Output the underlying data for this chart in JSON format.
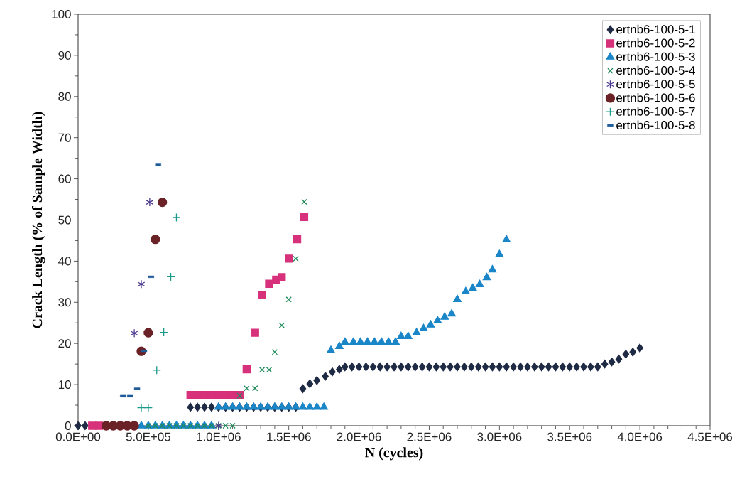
{
  "chart_data": {
    "type": "scatter",
    "xlabel": "N (cycles)",
    "ylabel": "Crack Length (% of Sample Width)",
    "xlim": [
      0,
      4500000
    ],
    "ylim": [
      0,
      100
    ],
    "xticks": [
      {
        "value": 0,
        "label": "0.0E+00"
      },
      {
        "value": 500000,
        "label": "5.0E+05"
      },
      {
        "value": 1000000,
        "label": "1.0E+06"
      },
      {
        "value": 1500000,
        "label": "1.5E+06"
      },
      {
        "value": 2000000,
        "label": "2.0E+06"
      },
      {
        "value": 2500000,
        "label": "2.5E+06"
      },
      {
        "value": 3000000,
        "label": "3.0E+06"
      },
      {
        "value": 3500000,
        "label": "3.5E+06"
      },
      {
        "value": 4000000,
        "label": "4.0E+06"
      },
      {
        "value": 4500000,
        "label": "4.5E+06"
      }
    ],
    "yticks": [
      0,
      10,
      20,
      30,
      40,
      50,
      60,
      70,
      80,
      90,
      100
    ],
    "legend": "top right",
    "series": [
      {
        "name": "ertnb6-100-5-1",
        "color": "#1f2a44",
        "marker": "diamond",
        "x": [
          0,
          50000,
          800000,
          850000,
          900000,
          950000,
          1000000,
          1050000,
          1100000,
          1150000,
          1200000,
          1250000,
          1300000,
          1350000,
          1400000,
          1450000,
          1500000,
          1550000,
          1600000,
          1650000,
          1700000,
          1760000,
          1810000,
          1860000,
          1900000,
          1950000,
          2000000,
          2050000,
          2100000,
          2150000,
          2200000,
          2250000,
          2300000,
          2350000,
          2400000,
          2450000,
          2500000,
          2550000,
          2600000,
          2650000,
          2700000,
          2750000,
          2800000,
          2850000,
          2900000,
          2950000,
          3000000,
          3050000,
          3100000,
          3150000,
          3200000,
          3250000,
          3300000,
          3350000,
          3400000,
          3450000,
          3500000,
          3550000,
          3600000,
          3650000,
          3700000,
          3750000,
          3800000,
          3850000,
          3900000,
          3950000,
          4000000
        ],
        "values": [
          0,
          0,
          4.5,
          4.5,
          4.5,
          4.5,
          4.5,
          4.5,
          4.5,
          4.5,
          4.5,
          4.5,
          4.5,
          4.5,
          4.5,
          4.5,
          4.5,
          4.5,
          9.0,
          10.2,
          11.0,
          12.0,
          13.1,
          13.7,
          14.3,
          14.3,
          14.3,
          14.3,
          14.3,
          14.3,
          14.3,
          14.3,
          14.3,
          14.3,
          14.3,
          14.3,
          14.3,
          14.3,
          14.3,
          14.3,
          14.3,
          14.3,
          14.3,
          14.3,
          14.3,
          14.3,
          14.3,
          14.3,
          14.3,
          14.3,
          14.3,
          14.3,
          14.3,
          14.3,
          14.3,
          14.3,
          14.3,
          14.3,
          14.3,
          14.3,
          14.3,
          15.0,
          15.5,
          16.2,
          17.4,
          17.9,
          18.9
        ]
      },
      {
        "name": "ertnb6-100-5-2",
        "color": "#d6317a",
        "marker": "square",
        "x": [
          100000,
          150000,
          800000,
          850000,
          900000,
          950000,
          1000000,
          1050000,
          1100000,
          1150000,
          1200000,
          1260000,
          1310000,
          1360000,
          1410000,
          1450000,
          1500000,
          1560000,
          1610000
        ],
        "values": [
          0,
          0,
          7.5,
          7.5,
          7.5,
          7.5,
          7.5,
          7.5,
          7.5,
          7.5,
          13.7,
          22.6,
          31.8,
          34.5,
          35.5,
          36.1,
          40.6,
          45.3,
          50.7
        ]
      },
      {
        "name": "ertnb6-100-5-3",
        "color": "#1a86c8",
        "marker": "triangle",
        "x": [
          450000,
          500000,
          550000,
          600000,
          650000,
          700000,
          750000,
          800000,
          850000,
          900000,
          950000,
          1000000,
          1050000,
          1100000,
          1150000,
          1200000,
          1250000,
          1300000,
          1350000,
          1400000,
          1450000,
          1500000,
          1550000,
          1600000,
          1650000,
          1700000,
          1750000,
          1800000,
          1860000,
          1900000,
          1960000,
          2010000,
          2060000,
          2110000,
          2160000,
          2210000,
          2260000,
          2300000,
          2350000,
          2410000,
          2460000,
          2510000,
          2560000,
          2610000,
          2660000,
          2700000,
          2760000,
          2810000,
          2860000,
          2910000,
          2950000,
          3000000,
          3050000
        ],
        "values": [
          0,
          0,
          0,
          0,
          0,
          0,
          0,
          0,
          0,
          0,
          0,
          4.5,
          4.5,
          4.5,
          4.5,
          4.5,
          4.5,
          4.5,
          4.5,
          4.5,
          4.5,
          4.5,
          4.5,
          4.5,
          4.5,
          4.5,
          4.5,
          18.3,
          19.3,
          20.3,
          20.3,
          20.3,
          20.3,
          20.3,
          20.3,
          20.3,
          20.3,
          21.7,
          21.7,
          22.6,
          23.6,
          24.5,
          25.5,
          26.4,
          27.2,
          30.7,
          32.6,
          33.4,
          34.3,
          36.0,
          37.9,
          41.6,
          45.2
        ]
      },
      {
        "name": "ertnb6-100-5-4",
        "color": "#1e8a5a",
        "marker": "cross",
        "x": [
          500000,
          550000,
          600000,
          650000,
          700000,
          750000,
          800000,
          850000,
          900000,
          950000,
          1000000,
          1050000,
          1100000,
          1150000,
          1200000,
          1260000,
          1310000,
          1360000,
          1400000,
          1450000,
          1500000,
          1550000,
          1610000
        ],
        "values": [
          0,
          0,
          0,
          0,
          0,
          0,
          0,
          0,
          0,
          0,
          0,
          0,
          0,
          7.3,
          9.1,
          9.1,
          13.6,
          13.6,
          17.9,
          24.4,
          30.7,
          40.6,
          54.4
        ]
      },
      {
        "name": "ertnb6-100-5-5",
        "color": "#4b3a8f",
        "x": [
          400000,
          450000,
          510000,
          1000000
        ],
        "values": [
          22.5,
          34.4,
          54.3,
          0
        ]
      },
      {
        "name": "ertnb6-100-5-6",
        "color": "#6b2226",
        "marker": "circle",
        "x": [
          200000,
          250000,
          300000,
          350000,
          400000,
          450000,
          500000,
          550000,
          600000
        ],
        "values": [
          0,
          0,
          0,
          0,
          0,
          18.1,
          22.6,
          45.3,
          54.3
        ]
      },
      {
        "name": "ertnb6-100-5-7",
        "color": "#1a9a8a",
        "marker": "plus",
        "x": [
          450000,
          500000,
          560000,
          610000,
          660000,
          700000
        ],
        "values": [
          4.4,
          4.4,
          13.5,
          22.7,
          36.2,
          50.6
        ]
      },
      {
        "name": "ertnb6-100-5-8",
        "color": "#1f5a9a",
        "x": [
          320000,
          370000,
          420000,
          470000,
          520000,
          570000
        ],
        "values": [
          7.2,
          7.2,
          9.0,
          18.2,
          36.2,
          63.4
        ]
      }
    ]
  }
}
